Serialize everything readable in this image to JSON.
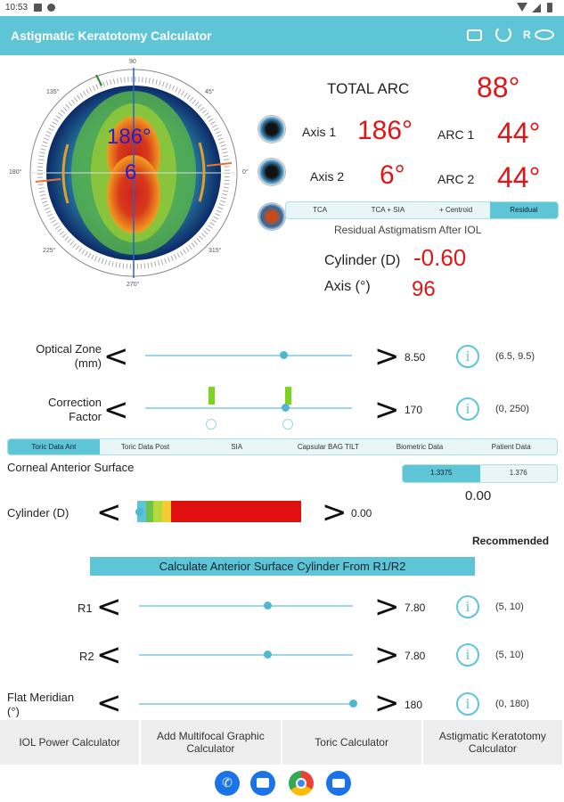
{
  "status": {
    "time": "10:53"
  },
  "app": {
    "title": "Astigmatic Keratotomy Calculator",
    "r_label": "R"
  },
  "eye_overlay": {
    "axis_value": "186°",
    "small_value": "6"
  },
  "dial": {
    "top_label": "90",
    "label_135": "135°",
    "label_45": "45°",
    "label_180": "180°",
    "label_0": "0°",
    "label_225": "225°",
    "label_315": "315°",
    "label_270": "270°"
  },
  "results": {
    "total_arc_label": "TOTAL ARC",
    "total_arc_value": "88°",
    "axis1_label": "Axis 1",
    "axis1_value": "186°",
    "arc1_label": "ARC 1",
    "arc1_value": "44°",
    "axis2_label": "Axis 2",
    "axis2_value": "6°",
    "arc2_label": "ARC 2",
    "arc2_value": "44°"
  },
  "mode_tabs": [
    {
      "label": "TCA",
      "active": false
    },
    {
      "label": "TCA + SIA",
      "active": false
    },
    {
      "label": "+ Centroid",
      "active": false
    },
    {
      "label": "Residual",
      "active": true
    }
  ],
  "residual": {
    "title": "Residual Astigmatism After IOL",
    "cylinder_label": "Cylinder (D)",
    "cylinder_value": "-0.60",
    "axis_label": "Axis (°)",
    "axis_value": "96"
  },
  "optical_zone": {
    "label": "Optical Zone (mm)",
    "value": "8.50",
    "range": "(6.5, 9.5)",
    "level": 0.67
  },
  "correction": {
    "label": "Correction Factor",
    "value": "170",
    "range": "(0, 250)",
    "level": 0.68
  },
  "data_tabs": [
    {
      "label": "Toric Data Ant",
      "active": true
    },
    {
      "label": "Toric Data Post",
      "active": false
    },
    {
      "label": "SIA",
      "active": false
    },
    {
      "label": "Capsular BAG TILT",
      "active": false
    },
    {
      "label": "Biometric Data",
      "active": false
    },
    {
      "label": "Patient Data",
      "active": false
    }
  ],
  "corneal": {
    "title": "Corneal Anterior Surface",
    "index_options": [
      "1.3375",
      "1.376"
    ],
    "index_active": 0,
    "index_value": "0.00",
    "cylinder_label": "Cylinder (D)",
    "cylinder_value": "0.00",
    "recommended": "Recommended",
    "calc_button": "Calculate Anterior Surface Cylinder From R1/R2"
  },
  "r1": {
    "label": "R1",
    "value": "7.80",
    "range": "(5, 10)",
    "level": 0.6
  },
  "r2": {
    "label": "R2",
    "value": "7.80",
    "range": "(5, 10)",
    "level": 0.6
  },
  "flat": {
    "label": "Flat Meridian (°)",
    "value": "180",
    "range": "(0, 180)",
    "level": 1.0
  },
  "bottom_buttons": [
    "IOL Power Calculator",
    "Add Multifocal Graphic Calculator",
    "Toric Calculator",
    "Astigmatic Keratotomy Calculator"
  ],
  "colors": {
    "accent": "#5ec5d6",
    "value_red": "#e01515",
    "overlay_blue": "#2222cc"
  }
}
